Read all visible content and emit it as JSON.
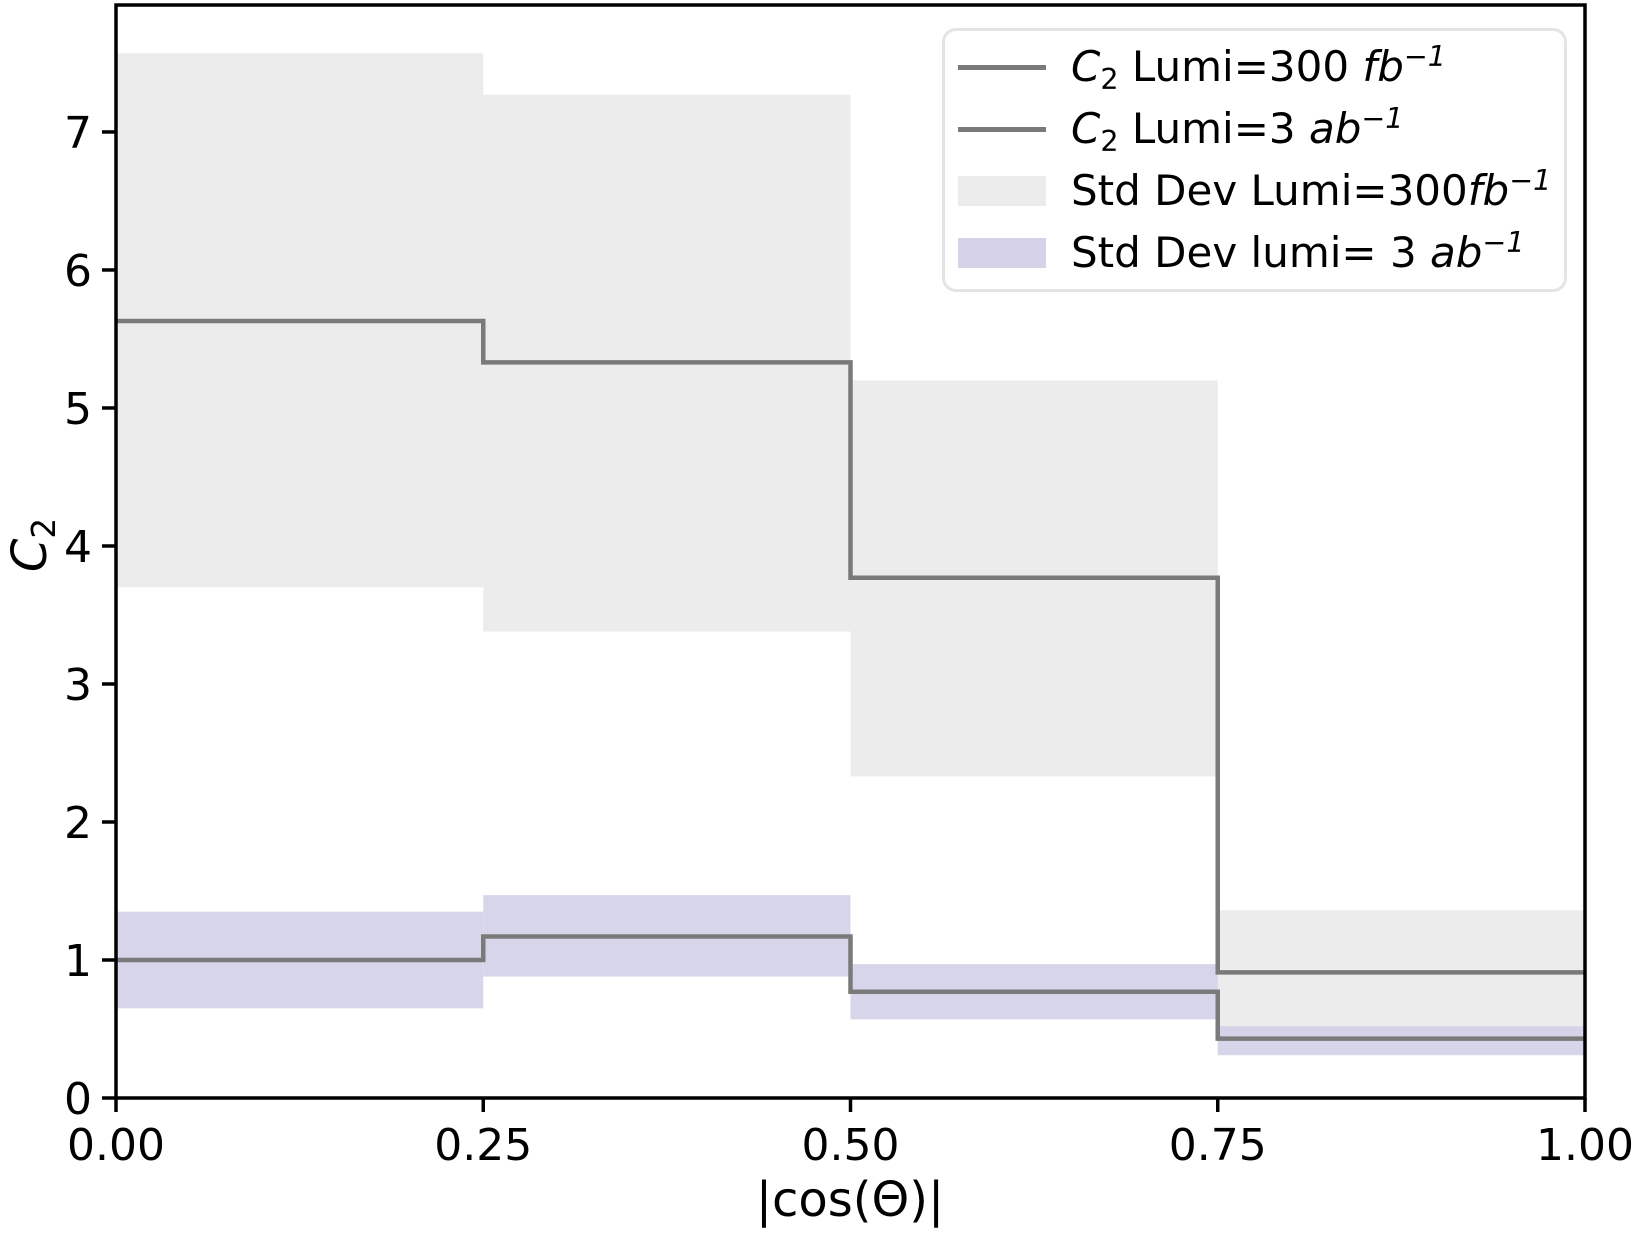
{
  "chart_data": {
    "type": "line",
    "subtype": "step-post-with-bands",
    "title": "",
    "xlabel": "|cos(Θ)|",
    "ylabel": "C_2",
    "ylabel_main": "C",
    "ylabel_sub": "2",
    "xlim": [
      0,
      1
    ],
    "ylim": [
      0,
      7.92
    ],
    "bin_edges": [
      0.0,
      0.25,
      0.5,
      0.75,
      1.0
    ],
    "xticks": {
      "values": [
        0,
        0.25,
        0.5,
        0.75,
        1.0
      ],
      "labels": [
        "0.00",
        "0.25",
        "0.50",
        "0.75",
        "1.00"
      ]
    },
    "yticks": {
      "values": [
        0,
        1,
        2,
        3,
        4,
        5,
        6,
        7
      ],
      "labels": [
        "0",
        "1",
        "2",
        "3",
        "4",
        "5",
        "6",
        "7"
      ]
    },
    "grid": false,
    "axis_color": "#000000",
    "legend_position": "upper right",
    "series": [
      {
        "id": "stddev-300fb",
        "kind": "band",
        "label": "Std Dev Lumi=300fb^-1",
        "lower": [
          3.7,
          3.38,
          2.33,
          0.46
        ],
        "upper": [
          7.57,
          7.27,
          5.2,
          1.36
        ],
        "color": "#ececec",
        "opacity": 1
      },
      {
        "id": "stddev-3ab",
        "kind": "band",
        "label": "Std Dev lumi= 3 ab^-1",
        "lower": [
          0.65,
          0.88,
          0.57,
          0.31
        ],
        "upper": [
          1.35,
          1.47,
          0.97,
          0.52
        ],
        "color": "#d2cfe6",
        "opacity": 0.88
      },
      {
        "id": "c2-300fb",
        "kind": "step",
        "label": "C_2 Lumi=300 fb^-1",
        "values": [
          5.63,
          5.33,
          3.77,
          0.91
        ],
        "color": "#7a7a7a",
        "linewidth": 4.5
      },
      {
        "id": "c2-3ab",
        "kind": "step",
        "label": "C_2 Lumi=3 ab^-1",
        "values": [
          1.0,
          1.17,
          0.77,
          0.43
        ],
        "color": "#7a7a7a",
        "linewidth": 4.5
      }
    ],
    "legend_items": [
      {
        "swatch": "line",
        "color": "#7a7a7a",
        "parts": [
          {
            "t": "C",
            "i": true
          },
          {
            "t": "2",
            "sub": true
          },
          {
            "t": " Lumi=300 "
          },
          {
            "t": "fb",
            "i": true
          },
          {
            "t": "−1",
            "sup": true,
            "i": true
          }
        ]
      },
      {
        "swatch": "line",
        "color": "#7a7a7a",
        "parts": [
          {
            "t": "C",
            "i": true
          },
          {
            "t": "2",
            "sub": true
          },
          {
            "t": " Lumi=3 "
          },
          {
            "t": "ab",
            "i": true
          },
          {
            "t": "−1",
            "sup": true,
            "i": true
          }
        ]
      },
      {
        "swatch": "patch",
        "color": "#ececec",
        "parts": [
          {
            "t": "Std Dev Lumi=300"
          },
          {
            "t": "fb",
            "i": true
          },
          {
            "t": "−1",
            "sup": true,
            "i": true
          }
        ]
      },
      {
        "swatch": "patch",
        "color": "#d6d3e8",
        "parts": [
          {
            "t": "Std Dev lumi= 3 "
          },
          {
            "t": "ab",
            "i": true
          },
          {
            "t": "−1",
            "sup": true,
            "i": true
          }
        ]
      }
    ]
  }
}
